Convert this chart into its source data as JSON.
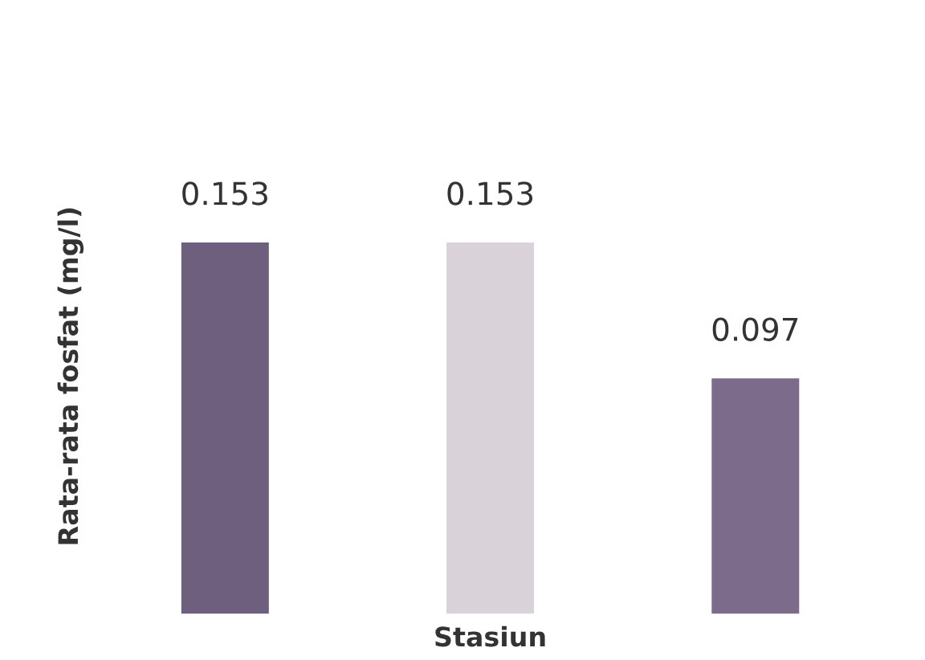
{
  "chart_data": {
    "type": "bar",
    "ylabel": "Rata-rata fosfat (mg/l)",
    "xlabel": "Stasiun",
    "categories": [
      null,
      null,
      null
    ],
    "values": [
      0.153,
      0.153,
      0.097
    ],
    "colors": [
      "#6e5f7e",
      "#d9d2d9",
      "#7d6b8c"
    ],
    "data_labels": true,
    "grid": false,
    "legend": false
  }
}
